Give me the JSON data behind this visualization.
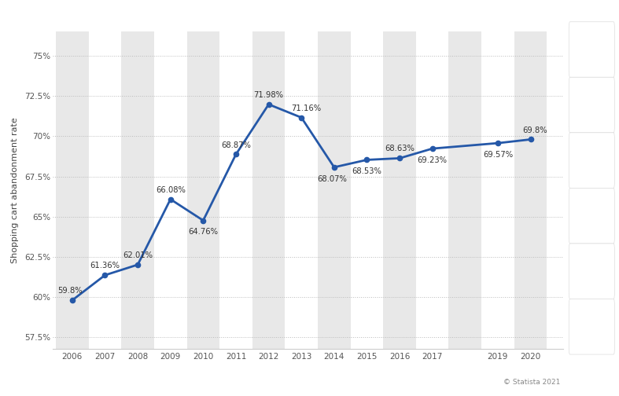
{
  "years": [
    2006,
    2007,
    2008,
    2009,
    2010,
    2011,
    2012,
    2013,
    2014,
    2015,
    2016,
    2017,
    2019,
    2020
  ],
  "values": [
    59.8,
    61.36,
    62.01,
    66.08,
    64.76,
    68.87,
    71.98,
    71.16,
    68.07,
    68.53,
    68.63,
    69.23,
    69.57,
    69.8
  ],
  "labels": [
    "59.8%",
    "61.36%",
    "62.01%",
    "66.08%",
    "64.76%",
    "68.87%",
    "71.98%",
    "71.16%",
    "68.07%",
    "68.53%",
    "68.63%",
    "69.23%",
    "69.57%",
    "69.8%"
  ],
  "line_color": "#2558a8",
  "marker_color": "#2558a8",
  "background_color": "#ffffff",
  "grid_color": "#bbbbbb",
  "ylabel": "Shopping cart abandonment rate",
  "yticks": [
    57.5,
    60.0,
    62.5,
    65.0,
    67.5,
    70.0,
    72.5,
    75.0
  ],
  "ytick_labels": [
    "57.5%",
    "60%",
    "62.5%",
    "65%",
    "67.5%",
    "70%",
    "72.5%",
    "75%"
  ],
  "ylim": [
    56.8,
    76.5
  ],
  "xlim_left": 2005.4,
  "xlim_right": 2021.0,
  "label_fontsize": 7.2,
  "axis_fontsize": 7.5,
  "ylabel_fontsize": 8,
  "watermark": "© Statista 2021",
  "stripe_color": "#e8e8e8",
  "sidebar_color": "#f0f0f0",
  "label_color": "#333333"
}
